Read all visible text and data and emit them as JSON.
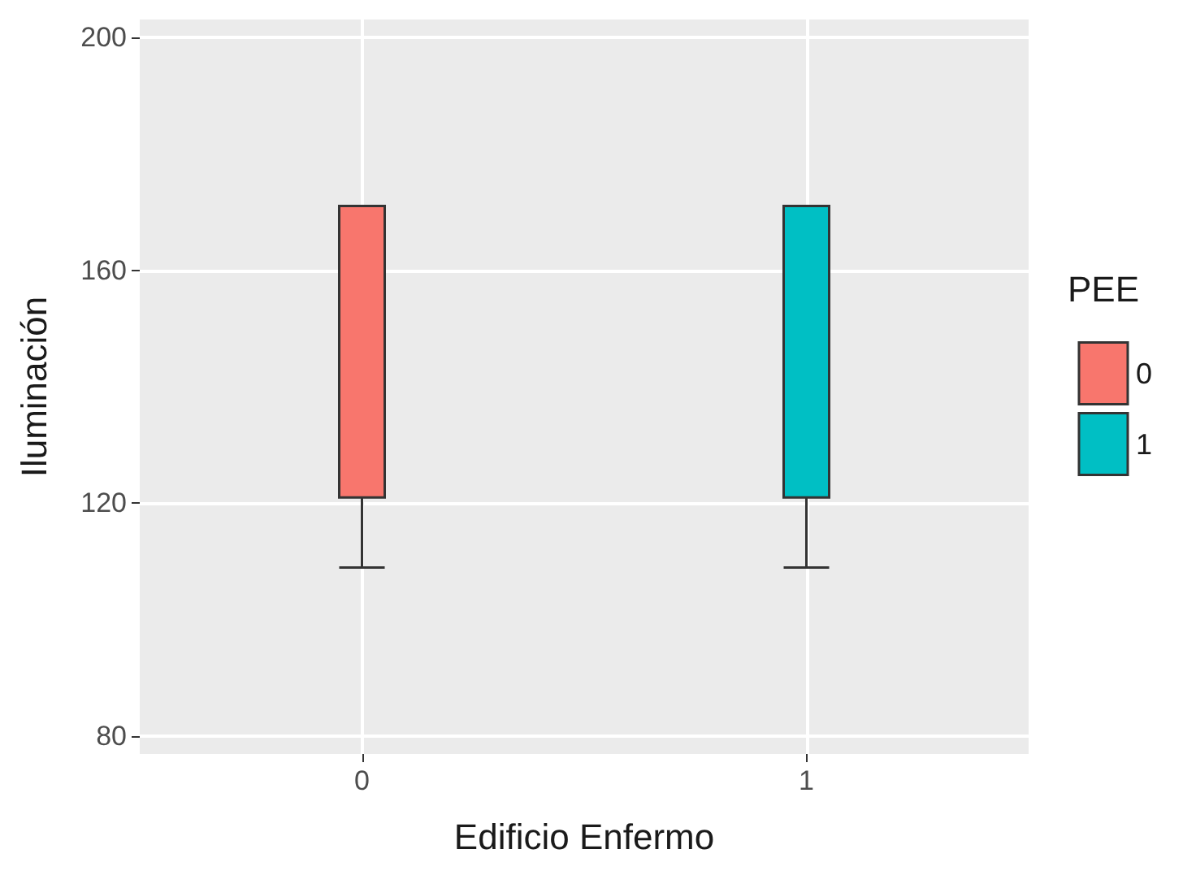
{
  "chart_data": {
    "type": "box",
    "xlabel": "Edificio Enfermo",
    "ylabel": "Iluminación",
    "legend_title": "PEE",
    "categories": [
      "0",
      "1"
    ],
    "series": [
      {
        "name": "0",
        "color": "#f8766d",
        "boxes": [
          {
            "low": 109,
            "q1": 121,
            "median": 171,
            "q3": 171,
            "high": 171
          },
          null
        ]
      },
      {
        "name": "1",
        "color": "#00bfc4",
        "boxes": [
          null,
          {
            "low": 109,
            "q1": 121,
            "median": 171,
            "q3": 171,
            "high": 171
          }
        ]
      }
    ],
    "ylim": [
      77,
      203
    ],
    "yticks": [
      80,
      120,
      160,
      200
    ],
    "grid": true,
    "legend": "right"
  }
}
